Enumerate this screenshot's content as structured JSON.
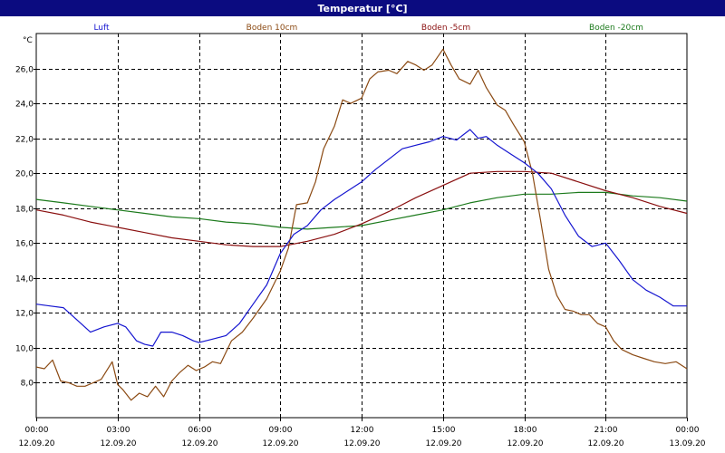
{
  "window": {
    "title": "Temperatur [°C]"
  },
  "colors": {
    "titlebar": "#0b0b80",
    "luft": "#1515d0",
    "boden10": "#8b4a13",
    "boden5": "#8a1010",
    "boden20": "#1c7a1c",
    "grid": "#000000"
  },
  "chart_data": {
    "type": "line",
    "title": "Temperatur [°C]",
    "ylabel": "°C",
    "xlabel": "",
    "ylim": [
      6.0,
      28.0
    ],
    "xlim": [
      0,
      24
    ],
    "grid": true,
    "legend_position": "top",
    "y_ticks": [
      8.0,
      10.0,
      12.0,
      14.0,
      16.0,
      18.0,
      20.0,
      22.0,
      24.0,
      26.0
    ],
    "y_tick_labels": [
      "8,0",
      "10,0",
      "12,0",
      "14,0",
      "16,0",
      "18,0",
      "20,0",
      "22,0",
      "24,0",
      "26,0"
    ],
    "x_ticks": [
      {
        "x": 0,
        "time": "00:00",
        "date": "12.09.20"
      },
      {
        "x": 3,
        "time": "03:00",
        "date": "12.09.20"
      },
      {
        "x": 6,
        "time": "06:00",
        "date": "12.09.20"
      },
      {
        "x": 9,
        "time": "09:00",
        "date": "12.09.20"
      },
      {
        "x": 12,
        "time": "12:00",
        "date": "12.09.20"
      },
      {
        "x": 15,
        "time": "15:00",
        "date": "12.09.20"
      },
      {
        "x": 18,
        "time": "18:00",
        "date": "12.09.20"
      },
      {
        "x": 21,
        "time": "21:00",
        "date": "12.09.20"
      },
      {
        "x": 24,
        "time": "00:00",
        "date": "13.09.20"
      }
    ],
    "series": [
      {
        "name": "Luft",
        "color": "#1515d0",
        "x": [
          0,
          0.5,
          1.0,
          1.5,
          2.0,
          2.5,
          3.0,
          3.3,
          3.7,
          4.0,
          4.3,
          4.6,
          5.0,
          5.4,
          5.8,
          6.0,
          6.5,
          7.0,
          7.5,
          8.0,
          8.5,
          9.0,
          9.5,
          10.0,
          10.5,
          11.0,
          11.5,
          12.0,
          12.5,
          13.0,
          13.5,
          14.0,
          14.5,
          15.0,
          15.5,
          16.0,
          16.3,
          16.6,
          17.0,
          17.5,
          18.0,
          18.5,
          19.0,
          19.5,
          20.0,
          20.5,
          21.0,
          21.5,
          22.0,
          22.5,
          23.0,
          23.5,
          24.0
        ],
        "y": [
          12.5,
          12.4,
          12.3,
          11.6,
          10.9,
          11.2,
          11.4,
          11.2,
          10.4,
          10.2,
          10.1,
          10.9,
          10.9,
          10.7,
          10.4,
          10.3,
          10.5,
          10.7,
          11.4,
          12.5,
          13.6,
          15.4,
          16.5,
          17.0,
          17.9,
          18.5,
          19.0,
          19.5,
          20.2,
          20.8,
          21.4,
          21.6,
          21.8,
          22.1,
          21.9,
          22.5,
          22.0,
          22.1,
          21.6,
          21.1,
          20.6,
          20.0,
          19.1,
          17.6,
          16.4,
          15.8,
          16.0,
          15.0,
          13.9,
          13.3,
          12.9,
          12.4,
          12.4
        ]
      },
      {
        "name": "Boden 10cm",
        "color": "#8b4a13",
        "x": [
          0,
          0.3,
          0.6,
          0.9,
          1.2,
          1.5,
          1.8,
          2.1,
          2.4,
          2.8,
          3.0,
          3.2,
          3.5,
          3.8,
          4.1,
          4.4,
          4.7,
          5.0,
          5.3,
          5.6,
          5.9,
          6.2,
          6.5,
          6.8,
          7.2,
          7.6,
          8.0,
          8.5,
          9.0,
          9.3,
          9.6,
          10.0,
          10.3,
          10.6,
          11.0,
          11.3,
          11.6,
          12.0,
          12.3,
          12.6,
          13.0,
          13.3,
          13.7,
          14.0,
          14.3,
          14.6,
          15.0,
          15.3,
          15.6,
          16.0,
          16.3,
          16.6,
          17.0,
          17.3,
          17.6,
          18.0,
          18.3,
          18.6,
          18.9,
          19.2,
          19.5,
          19.8,
          20.1,
          20.4,
          20.7,
          21.0,
          21.3,
          21.6,
          22.0,
          22.4,
          22.8,
          23.2,
          23.6,
          24.0
        ],
        "y": [
          8.9,
          8.8,
          9.3,
          8.1,
          8.0,
          7.8,
          7.8,
          8.0,
          8.2,
          9.2,
          7.9,
          7.6,
          7.0,
          7.4,
          7.2,
          7.8,
          7.2,
          8.1,
          8.6,
          9.0,
          8.7,
          8.9,
          9.2,
          9.1,
          10.4,
          10.9,
          11.7,
          12.8,
          14.4,
          15.7,
          18.2,
          18.3,
          19.5,
          21.4,
          22.7,
          24.2,
          24.0,
          24.3,
          25.4,
          25.8,
          25.9,
          25.7,
          26.4,
          26.2,
          25.9,
          26.2,
          27.1,
          26.2,
          25.4,
          25.1,
          25.9,
          24.9,
          23.9,
          23.6,
          22.8,
          21.8,
          20.0,
          17.3,
          14.5,
          13.0,
          12.2,
          12.1,
          11.9,
          11.9,
          11.4,
          11.2,
          10.4,
          9.9,
          9.6,
          9.4,
          9.2,
          9.1,
          9.2,
          8.8
        ]
      },
      {
        "name": "Boden -5cm",
        "color": "#8a1010",
        "x": [
          0,
          1,
          2,
          3,
          4,
          5,
          6,
          7,
          8,
          9,
          10,
          11,
          12,
          13,
          14,
          15,
          16,
          17,
          18,
          19,
          20,
          21,
          22,
          23,
          24
        ],
        "y": [
          17.9,
          17.6,
          17.2,
          16.9,
          16.6,
          16.3,
          16.1,
          15.9,
          15.8,
          15.8,
          16.1,
          16.5,
          17.1,
          17.8,
          18.6,
          19.3,
          20.0,
          20.1,
          20.1,
          20.0,
          19.5,
          19.0,
          18.6,
          18.1,
          17.7
        ]
      },
      {
        "name": "Boden -20cm",
        "color": "#1c7a1c",
        "x": [
          0,
          1,
          2,
          3,
          4,
          5,
          6,
          7,
          8,
          9,
          10,
          11,
          12,
          13,
          14,
          15,
          16,
          17,
          18,
          19,
          20,
          21,
          22,
          23,
          24
        ],
        "y": [
          18.5,
          18.3,
          18.1,
          17.9,
          17.7,
          17.5,
          17.4,
          17.2,
          17.1,
          16.9,
          16.8,
          16.9,
          17.0,
          17.3,
          17.6,
          17.9,
          18.3,
          18.6,
          18.8,
          18.8,
          18.9,
          18.9,
          18.7,
          18.6,
          18.4
        ]
      }
    ]
  }
}
